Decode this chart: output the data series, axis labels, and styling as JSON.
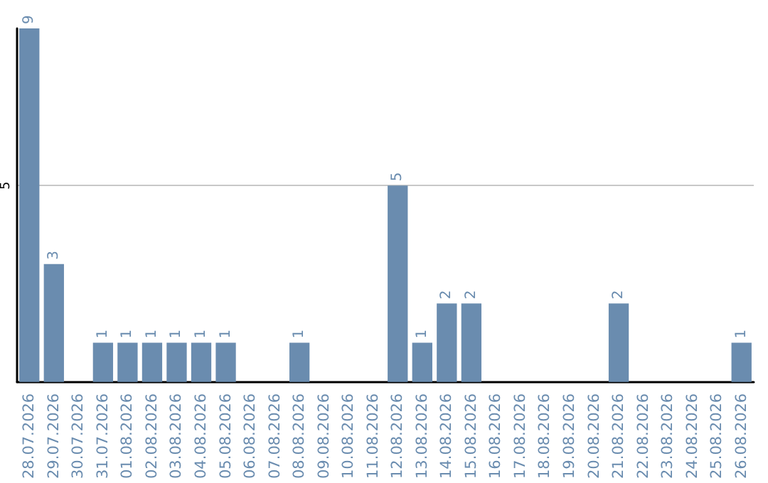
{
  "chart_data": {
    "type": "bar",
    "categories": [
      "28.07.2026",
      "29.07.2026",
      "30.07.2026",
      "31.07.2026",
      "01.08.2026",
      "02.08.2026",
      "03.08.2026",
      "04.08.2026",
      "05.08.2026",
      "06.08.2026",
      "07.08.2026",
      "08.08.2026",
      "09.08.2026",
      "10.08.2026",
      "11.08.2026",
      "12.08.2026",
      "13.08.2026",
      "14.08.2026",
      "15.08.2026",
      "16.08.2026",
      "17.08.2026",
      "18.08.2026",
      "19.08.2026",
      "20.08.2026",
      "21.08.2026",
      "22.08.2026",
      "23.08.2026",
      "24.08.2026",
      "25.08.2026",
      "26.08.2026"
    ],
    "values": [
      9,
      3,
      null,
      1,
      1,
      1,
      1,
      1,
      1,
      null,
      null,
      1,
      null,
      null,
      null,
      5,
      1,
      2,
      2,
      null,
      null,
      null,
      null,
      null,
      2,
      null,
      null,
      null,
      null,
      1
    ],
    "color": "#6a8caf",
    "ylim": [
      0,
      9
    ],
    "yticks": [
      5
    ],
    "grid": "y",
    "data_labels": true
  }
}
